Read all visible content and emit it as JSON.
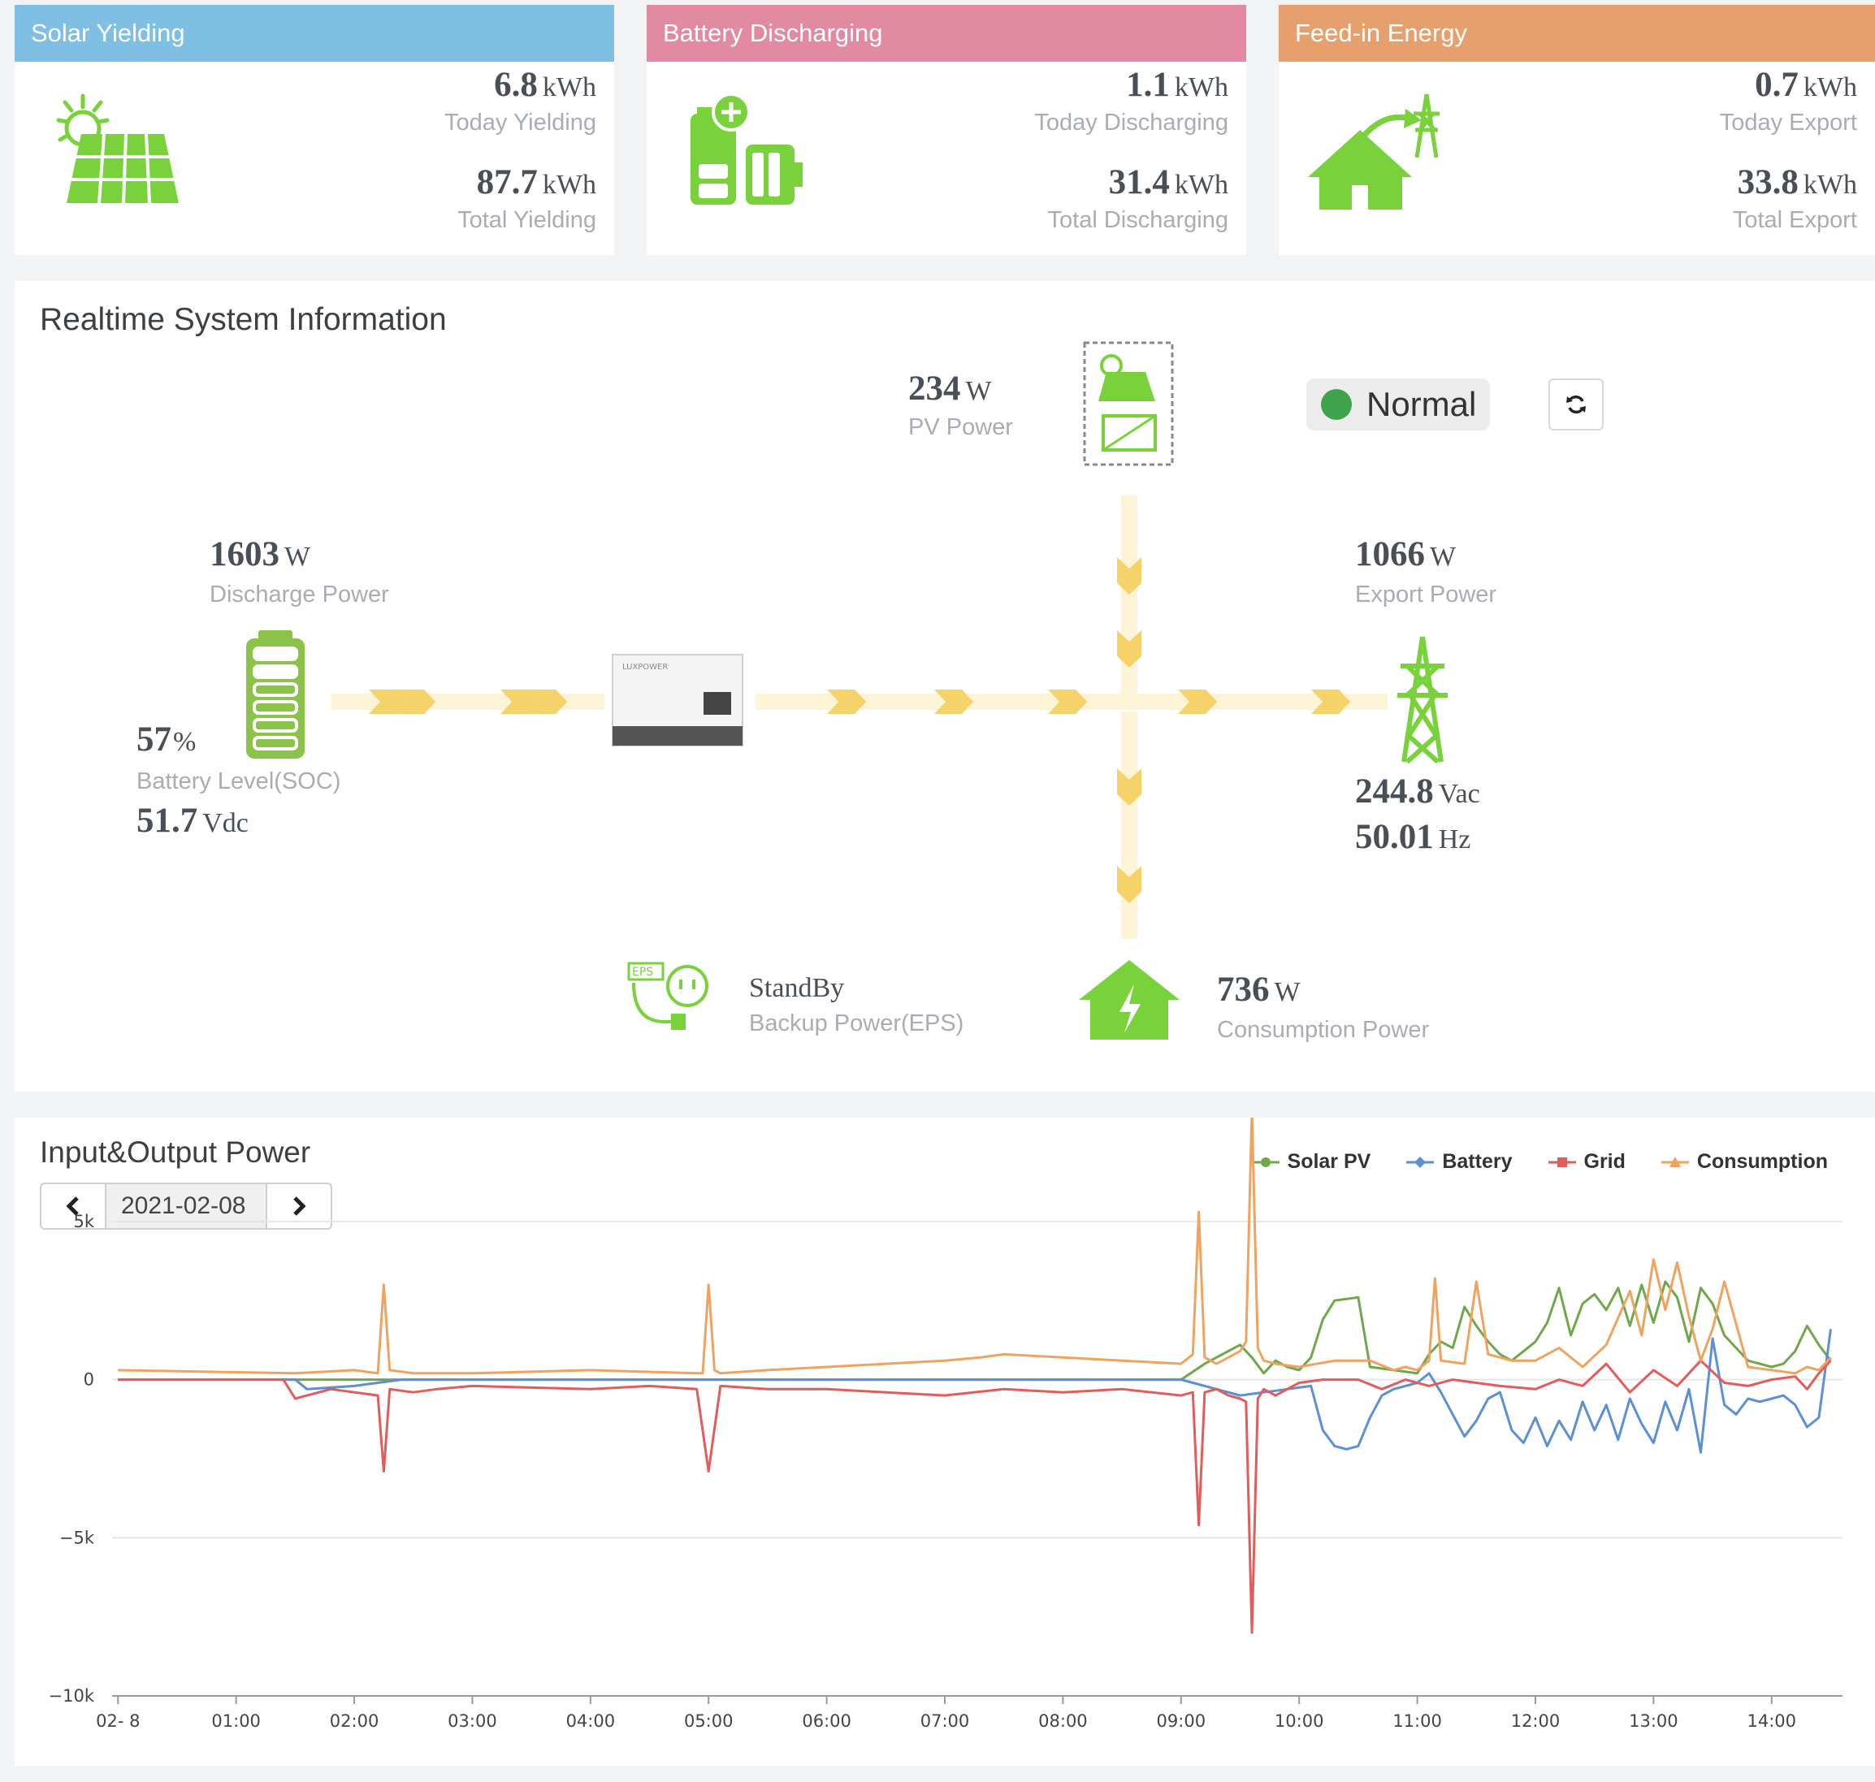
{
  "cards": [
    {
      "title": "Solar Yielding",
      "color": "#7fbfe4",
      "icon": "solar-panel-icon",
      "today_value": "6.8",
      "today_unit": "kWh",
      "today_label": "Today Yielding",
      "total_value": "87.7",
      "total_unit": "kWh",
      "total_label": "Total Yielding"
    },
    {
      "title": "Battery Discharging",
      "color": "#e38aa3",
      "icon": "battery-discharge-icon",
      "today_value": "1.1",
      "today_unit": "kWh",
      "today_label": "Today Discharging",
      "total_value": "31.4",
      "total_unit": "kWh",
      "total_label": "Total Discharging"
    },
    {
      "title": "Feed-in Energy",
      "color": "#e6a06e",
      "icon": "house-grid-export-icon",
      "today_value": "0.7",
      "today_unit": "kWh",
      "today_label": "Today Export",
      "total_value": "33.8",
      "total_unit": "kWh",
      "total_label": "Total Export"
    }
  ],
  "realtime": {
    "title": "Realtime System Information",
    "pv": {
      "value": "234",
      "unit": "W",
      "label": "PV Power"
    },
    "battery": {
      "power_value": "1603",
      "power_unit": "W",
      "power_label": "Discharge Power",
      "soc_value": "57",
      "soc_unit": "%",
      "soc_label": "Battery Level(SOC)",
      "voltage_value": "51.7",
      "voltage_unit": "Vdc"
    },
    "grid": {
      "power_value": "1066",
      "power_unit": "W",
      "power_label": "Export Power",
      "voltage_value": "244.8",
      "voltage_unit": "Vac",
      "freq_value": "50.01",
      "freq_unit": "Hz"
    },
    "eps": {
      "status": "StandBy",
      "label": "Backup Power(EPS)",
      "badge": "EPS"
    },
    "consumption": {
      "value": "736",
      "unit": "W",
      "label": "Consumption Power"
    },
    "status": {
      "text": "Normal",
      "color": "#3ea34a"
    },
    "inverter_brand": "LUXPOWER"
  },
  "io_chart": {
    "title": "Input&Output Power",
    "date": "2021-02-08",
    "legend": [
      {
        "name": "Solar PV",
        "color": "#6fa84a"
      },
      {
        "name": "Battery",
        "color": "#5b8fd6"
      },
      {
        "name": "Grid",
        "color": "#e25c5c"
      },
      {
        "name": "Consumption",
        "color": "#f0a35e"
      }
    ]
  },
  "chart_data": {
    "type": "line",
    "title": "Input&Output Power",
    "x_ticks": [
      "02- 8",
      "01:00",
      "02:00",
      "03:00",
      "04:00",
      "05:00",
      "06:00",
      "07:00",
      "08:00",
      "09:00",
      "10:00",
      "11:00",
      "12:00",
      "13:00",
      "14:00"
    ],
    "y_ticks": [
      "5k",
      "0",
      "−5k",
      "−10k"
    ],
    "xlim": [
      -0.05,
      14.6
    ],
    "ylim": [
      -10000,
      7000
    ],
    "grid": true,
    "legend_position": "top-right",
    "series": [
      {
        "name": "Solar PV",
        "color": "#6fa84a",
        "x": [
          0,
          9.0,
          9.2,
          9.4,
          9.5,
          9.6,
          9.7,
          9.8,
          9.9,
          10.0,
          10.1,
          10.2,
          10.3,
          10.5,
          10.6,
          10.8,
          11.0,
          11.1,
          11.2,
          11.3,
          11.4,
          11.5,
          11.6,
          11.7,
          11.8,
          12.0,
          12.1,
          12.2,
          12.3,
          12.4,
          12.5,
          12.6,
          12.7,
          12.8,
          12.9,
          13.0,
          13.1,
          13.2,
          13.3,
          13.4,
          13.5,
          13.6,
          13.7,
          13.8,
          14.0,
          14.1,
          14.2,
          14.3,
          14.4,
          14.5
        ],
        "y": [
          0,
          0,
          500,
          900,
          1100,
          700,
          200,
          600,
          400,
          300,
          700,
          1900,
          2500,
          2600,
          400,
          300,
          200,
          800,
          1200,
          1000,
          2300,
          1700,
          1200,
          800,
          600,
          1200,
          1800,
          2900,
          1400,
          2400,
          2700,
          2200,
          2900,
          1700,
          3000,
          1800,
          3100,
          2600,
          1200,
          2900,
          2400,
          1400,
          1000,
          600,
          400,
          500,
          900,
          1700,
          1100,
          600
        ]
      },
      {
        "name": "Battery",
        "color": "#5b8fd6",
        "x": [
          0,
          1.5,
          1.6,
          2.0,
          2.2,
          2.4,
          4.5,
          5.5,
          6.0,
          8.0,
          9.0,
          9.1,
          9.3,
          9.5,
          9.7,
          9.9,
          10.1,
          10.2,
          10.3,
          10.4,
          10.5,
          10.6,
          10.7,
          10.8,
          11.0,
          11.1,
          11.2,
          11.3,
          11.4,
          11.5,
          11.6,
          11.7,
          11.8,
          11.9,
          12.0,
          12.1,
          12.2,
          12.3,
          12.4,
          12.5,
          12.6,
          12.7,
          12.8,
          12.9,
          13.0,
          13.1,
          13.2,
          13.3,
          13.4,
          13.5,
          13.6,
          13.7,
          13.8,
          13.9,
          14.0,
          14.1,
          14.2,
          14.3,
          14.4,
          14.5
        ],
        "y": [
          0,
          0,
          -300,
          -200,
          -100,
          0,
          0,
          0,
          0,
          0,
          0,
          -100,
          -300,
          -500,
          -400,
          -300,
          -200,
          -1600,
          -2100,
          -2200,
          -2100,
          -1200,
          -500,
          -300,
          -100,
          200,
          -400,
          -1100,
          -1800,
          -1300,
          -600,
          -400,
          -1600,
          -2000,
          -1200,
          -2100,
          -1300,
          -1900,
          -700,
          -1600,
          -800,
          -1900,
          -600,
          -1400,
          -2000,
          -700,
          -1600,
          -300,
          -2300,
          1300,
          -800,
          -1100,
          -600,
          -700,
          -600,
          -500,
          -800,
          -1500,
          -1200,
          1600
        ]
      },
      {
        "name": "Grid",
        "color": "#e25c5c",
        "x": [
          0,
          1.4,
          1.5,
          1.6,
          1.8,
          2.0,
          2.2,
          2.25,
          2.3,
          2.5,
          2.7,
          3.0,
          4.0,
          4.5,
          4.9,
          5.0,
          5.1,
          5.5,
          6.0,
          6.5,
          7.0,
          7.5,
          8.0,
          8.5,
          9.0,
          9.1,
          9.15,
          9.2,
          9.3,
          9.4,
          9.5,
          9.55,
          9.6,
          9.65,
          9.7,
          9.8,
          10.0,
          10.2,
          10.5,
          10.7,
          10.9,
          11.1,
          11.3,
          11.5,
          11.7,
          12.0,
          12.2,
          12.4,
          12.6,
          12.8,
          13.0,
          13.2,
          13.4,
          13.6,
          13.8,
          14.0,
          14.2,
          14.3,
          14.4,
          14.5
        ],
        "y": [
          0,
          0,
          -600,
          -500,
          -300,
          -400,
          -500,
          -2900,
          -300,
          -400,
          -300,
          -200,
          -300,
          -200,
          -300,
          -2900,
          -200,
          -300,
          -300,
          -400,
          -500,
          -300,
          -400,
          -300,
          -500,
          -400,
          -4600,
          -400,
          -300,
          -500,
          -600,
          -700,
          -8000,
          -600,
          -300,
          -500,
          -100,
          0,
          0,
          -300,
          0,
          -200,
          0,
          -100,
          -200,
          -300,
          0,
          -200,
          500,
          -400,
          300,
          -200,
          600,
          -100,
          -200,
          0,
          100,
          -300,
          200,
          600
        ]
      },
      {
        "name": "Consumption",
        "color": "#f0a35e",
        "x": [
          0,
          1.5,
          2.0,
          2.2,
          2.25,
          2.3,
          2.5,
          3.0,
          4.0,
          4.9,
          4.95,
          5.0,
          5.05,
          5.1,
          5.5,
          6.0,
          6.5,
          7.0,
          7.3,
          7.5,
          8.0,
          8.5,
          9.0,
          9.1,
          9.15,
          9.2,
          9.3,
          9.4,
          9.5,
          9.55,
          9.6,
          9.65,
          9.7,
          9.8,
          10.0,
          10.3,
          10.6,
          10.8,
          10.9,
          11.0,
          11.1,
          11.15,
          11.2,
          11.4,
          11.5,
          11.6,
          11.8,
          12.0,
          12.2,
          12.4,
          12.6,
          12.8,
          12.9,
          13.0,
          13.1,
          13.2,
          13.3,
          13.4,
          13.5,
          13.6,
          13.8,
          14.0,
          14.2,
          14.3,
          14.4,
          14.5
        ],
        "y": [
          300,
          200,
          300,
          200,
          3000,
          300,
          200,
          200,
          300,
          200,
          200,
          3000,
          300,
          200,
          300,
          400,
          500,
          600,
          700,
          800,
          700,
          600,
          500,
          800,
          5300,
          700,
          500,
          700,
          900,
          1200,
          8500,
          1000,
          600,
          500,
          400,
          600,
          600,
          300,
          400,
          300,
          600,
          3200,
          600,
          500,
          3100,
          800,
          600,
          600,
          1000,
          400,
          1100,
          2800,
          1400,
          3800,
          2200,
          3700,
          2000,
          600,
          1600,
          3100,
          400,
          300,
          200,
          400,
          300,
          700
        ]
      }
    ]
  }
}
